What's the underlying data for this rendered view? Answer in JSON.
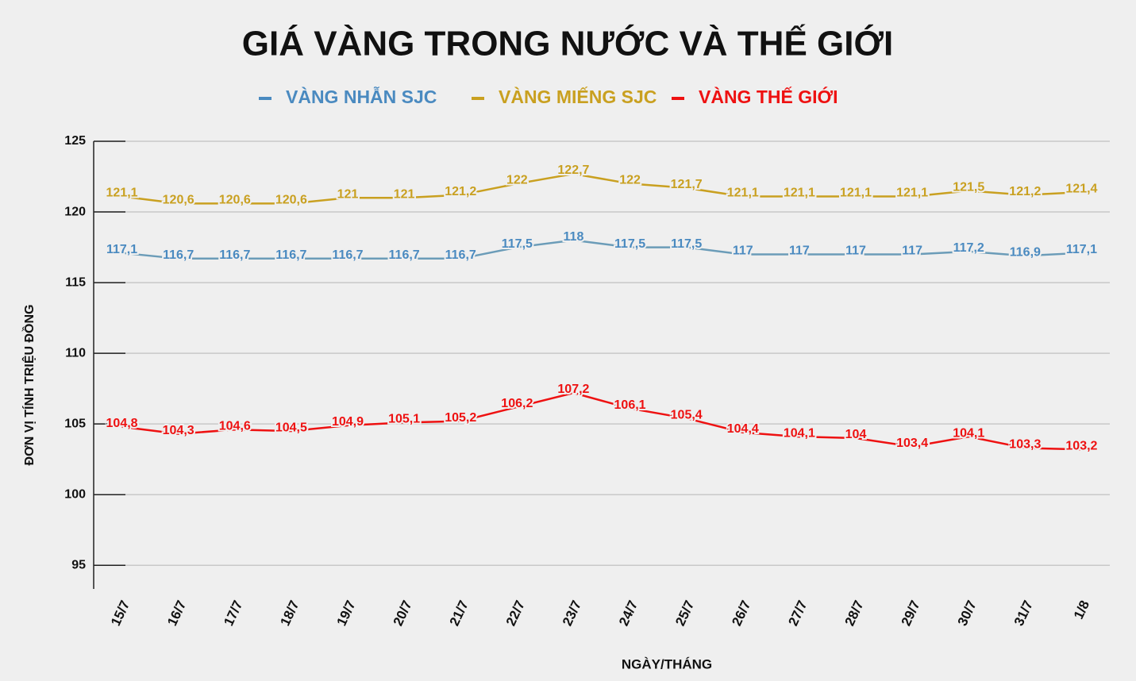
{
  "chart_data": {
    "type": "line",
    "title": "GIÁ VÀNG TRONG NƯỚC VÀ THẾ GIỚI",
    "y_label": "ĐƠN VỊ TÍNH TRIỆU ĐỒNG",
    "x_label": "NGÀY/THÁNG",
    "categories": [
      "15/7",
      "16/7",
      "17/7",
      "18/7",
      "19/7",
      "20/7",
      "21/7",
      "22/7",
      "23/7",
      "24/7",
      "25/7",
      "26/7",
      "27/7",
      "28/7",
      "29/7",
      "30/7",
      "31/7",
      "1/8"
    ],
    "series": [
      {
        "name": "VÀNG NHẪN SJC",
        "color": "#4a8ac0",
        "line_color": "#6b9cb8",
        "values": [
          117.1,
          116.7,
          116.7,
          116.7,
          116.7,
          116.7,
          116.7,
          117.5,
          118,
          117.5,
          117.5,
          117,
          117,
          117,
          117,
          117.2,
          116.9,
          117.1
        ],
        "value_labels": [
          "117,1",
          "116,7",
          "116,7",
          "116,7",
          "116,7",
          "116,7",
          "116,7",
          "117,5",
          "118",
          "117,5",
          "117,5",
          "117",
          "117",
          "117",
          "117",
          "117,2",
          "116,9",
          "117,1"
        ]
      },
      {
        "name": "VÀNG MIẾNG SJC",
        "color": "#c9a020",
        "line_color": "#c9a020",
        "values": [
          121.1,
          120.6,
          120.6,
          120.6,
          121,
          121,
          121.2,
          122,
          122.7,
          122,
          121.7,
          121.1,
          121.1,
          121.1,
          121.1,
          121.5,
          121.2,
          121.4
        ],
        "value_labels": [
          "121,1",
          "120,6",
          "120,6",
          "120,6",
          "121",
          "121",
          "121,2",
          "122",
          "122,7",
          "122",
          "121,7",
          "121,1",
          "121,1",
          "121,1",
          "121,1",
          "121,5",
          "121,2",
          "121,4"
        ]
      },
      {
        "name": "VÀNG THẾ GIỚI",
        "color": "#ee1111",
        "line_color": "#ee1111",
        "values": [
          104.8,
          104.3,
          104.6,
          104.5,
          104.9,
          105.1,
          105.2,
          106.2,
          107.2,
          106.1,
          105.4,
          104.4,
          104.1,
          104,
          103.4,
          104.1,
          103.3,
          103.2
        ],
        "value_labels": [
          "104,8",
          "104,3",
          "104,6",
          "104,5",
          "104,9",
          "105,1",
          "105,2",
          "106,2",
          "107,2",
          "106,1",
          "105,4",
          "104,4",
          "104,1",
          "104",
          "103,4",
          "104,1",
          "103,3",
          "103,2"
        ]
      }
    ],
    "ylim": [
      93.33,
      125
    ],
    "yticks": [
      95,
      100,
      105,
      110,
      115,
      120,
      125
    ],
    "grid": true
  }
}
